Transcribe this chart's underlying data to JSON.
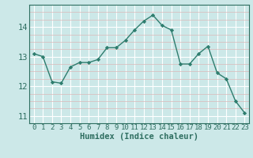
{
  "xlabel": "Humidex (Indice chaleur)",
  "ylabel": "",
  "x_values": [
    0,
    1,
    2,
    3,
    4,
    5,
    6,
    7,
    8,
    9,
    10,
    11,
    12,
    13,
    14,
    15,
    16,
    17,
    18,
    19,
    20,
    21,
    22,
    23
  ],
  "y_values": [
    13.1,
    13.0,
    12.15,
    12.1,
    12.65,
    12.8,
    12.8,
    12.9,
    13.3,
    13.3,
    13.55,
    13.9,
    14.2,
    14.4,
    14.05,
    13.9,
    12.75,
    12.75,
    13.1,
    13.35,
    12.45,
    12.25,
    11.5,
    11.1
  ],
  "line_color": "#2e7d6e",
  "marker_color": "#2e7d6e",
  "bg_color": "#cce8e8",
  "grid_color_major": "#ffffff",
  "grid_color_minor": "#dbb8b8",
  "ylim": [
    10.75,
    14.75
  ],
  "xlim": [
    -0.5,
    23.5
  ],
  "yticks": [
    11,
    12,
    13,
    14
  ],
  "xticks": [
    0,
    1,
    2,
    3,
    4,
    5,
    6,
    7,
    8,
    9,
    10,
    11,
    12,
    13,
    14,
    15,
    16,
    17,
    18,
    19,
    20,
    21,
    22,
    23
  ],
  "tick_label_fontsize": 6.5,
  "xlabel_fontsize": 7.5,
  "axis_color": "#2e6e60"
}
